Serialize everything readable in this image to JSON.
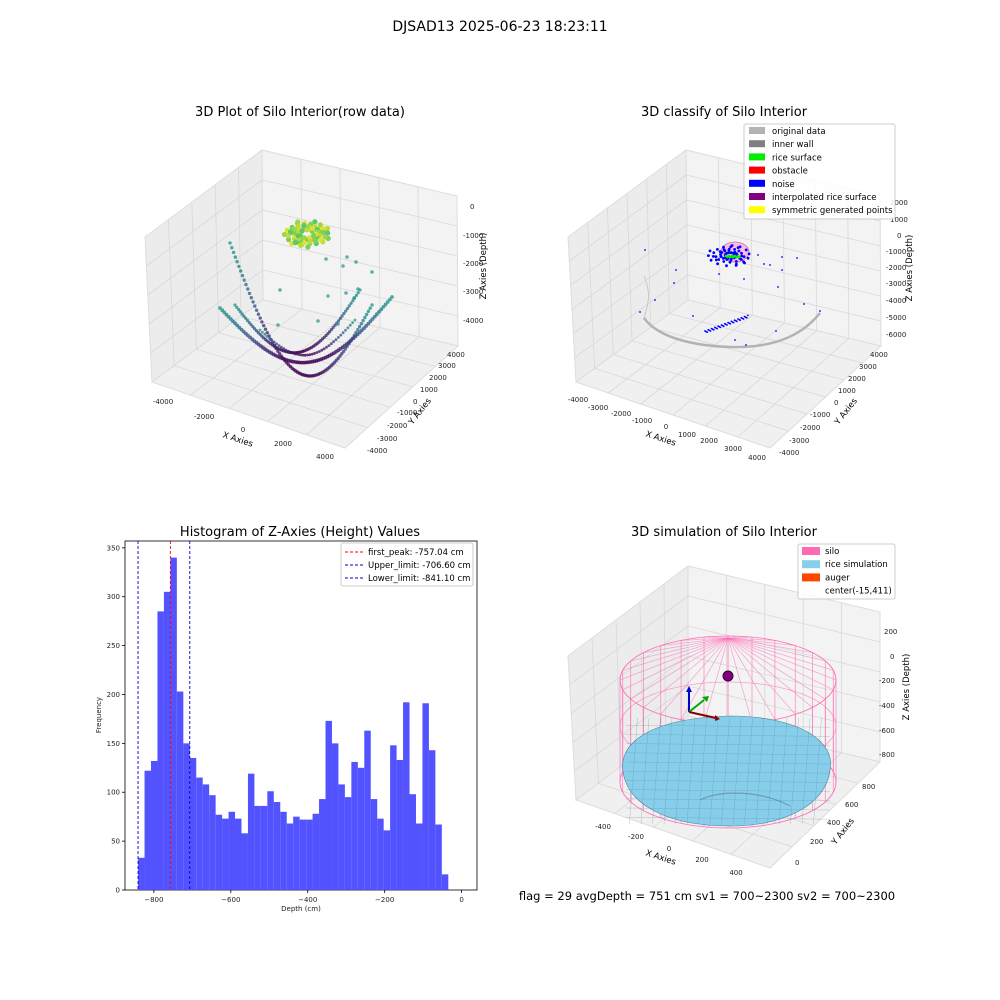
{
  "figure": {
    "suptitle": "DJSAD13 2025-06-23 18:23:11",
    "footer": "flag = 29  avgDepth = 751 cm  sv1 = 700~2300  sv2 = 700~2300"
  },
  "colors": {
    "histogram_bar": "#4f4fff",
    "first_peak": "#ff0000",
    "limits": "#0000cc",
    "pane": "#f2f2f2",
    "grid": "#d9d9d9"
  },
  "chart_data": [
    {
      "type": "scatter3d",
      "title": "3D Plot of Silo Interior(row data)",
      "xlabel": "X Axies",
      "ylabel": "Y Axies",
      "zlabel": "Z Axies (Depth)",
      "x_ticks": [
        "-4000",
        "-2000",
        "0",
        "2000",
        "4000"
      ],
      "y_ticks": [
        "-4000",
        "-3000",
        "-2000",
        "-1000",
        "0",
        "1000",
        "2000",
        "3000",
        "4000"
      ],
      "z_ticks": [
        "-4000",
        "-3000",
        "-2000",
        "-1000",
        "0"
      ],
      "colormap": "viridis"
    },
    {
      "type": "scatter3d",
      "title": "3D classify of Silo Interior",
      "xlabel": "X Axies",
      "ylabel": "Y Axies",
      "zlabel": "Z Axies (Depth)",
      "x_ticks": [
        "-4000",
        "-3000",
        "-2000",
        "-1000",
        "0",
        "1000",
        "2000",
        "3000",
        "4000"
      ],
      "y_ticks": [
        "-4000",
        "-3000",
        "-2000",
        "-1000",
        "0",
        "1000",
        "2000",
        "3000",
        "4000"
      ],
      "z_ticks": [
        "-6000",
        "-5000",
        "-4000",
        "-3000",
        "-2000",
        "-1000",
        "0",
        "1000",
        "2000"
      ],
      "legend": [
        {
          "label": "original data",
          "color": "#b3b3b3"
        },
        {
          "label": "inner wall",
          "color": "#808080"
        },
        {
          "label": "rice surface",
          "color": "#00ee00"
        },
        {
          "label": "obstacle",
          "color": "#ff0000"
        },
        {
          "label": "noise",
          "color": "#0000ff"
        },
        {
          "label": "interpolated rice surface",
          "color": "#800080"
        },
        {
          "label": "symmetric generated points",
          "color": "#ffff00"
        }
      ]
    },
    {
      "type": "bar",
      "title": "Histogram of Z-Axies (Height) Values",
      "xlabel": "Depth (cm)",
      "ylabel": "Frequency",
      "xlim": [
        -875,
        40
      ],
      "ylim": [
        0,
        357
      ],
      "x_ticks": [
        -800,
        -600,
        -400,
        -200,
        0
      ],
      "y_ticks": [
        0,
        50,
        100,
        150,
        200,
        250,
        300,
        350
      ],
      "bin_start": -841,
      "bin_width": 16.8,
      "values": [
        33,
        122,
        132,
        285,
        305,
        340,
        203,
        150,
        135,
        115,
        108,
        97,
        77,
        73,
        80,
        73,
        58,
        119,
        86,
        86,
        101,
        90,
        80,
        68,
        75,
        72,
        72,
        78,
        93,
        173,
        150,
        108,
        95,
        131,
        125,
        163,
        93,
        73,
        61,
        148,
        133,
        192,
        98,
        68,
        191,
        143,
        67,
        16
      ],
      "vlines": [
        {
          "label": "first_peak: -757.04 cm",
          "x": -757.04,
          "color": "#ff0000"
        },
        {
          "label": "Upper_limit: -706.60 cm",
          "x": -706.6,
          "color": "#0000cc"
        },
        {
          "label": "Lower_limit: -841.10 cm",
          "x": -841.1,
          "color": "#0000cc"
        }
      ],
      "legend_position": "top-right"
    },
    {
      "type": "surface3d",
      "title": "3D simulation of Silo Interior",
      "xlabel": "X Axies",
      "ylabel": "Y Axies",
      "zlabel": "Z Axies (Depth)",
      "x_ticks": [
        "-400",
        "-200",
        "0",
        "200",
        "400"
      ],
      "y_ticks": [
        "0",
        "200",
        "400",
        "600",
        "800"
      ],
      "z_ticks": [
        "-800",
        "-600",
        "-400",
        "-200",
        "0",
        "200"
      ],
      "legend": [
        {
          "label": "silo",
          "color": "#ff69b4"
        },
        {
          "label": "rice simulation",
          "color": "#87ceeb"
        },
        {
          "label": "auger",
          "color": "#ff4500"
        },
        {
          "label": "center(-15,411)",
          "color": "none"
        }
      ]
    }
  ]
}
